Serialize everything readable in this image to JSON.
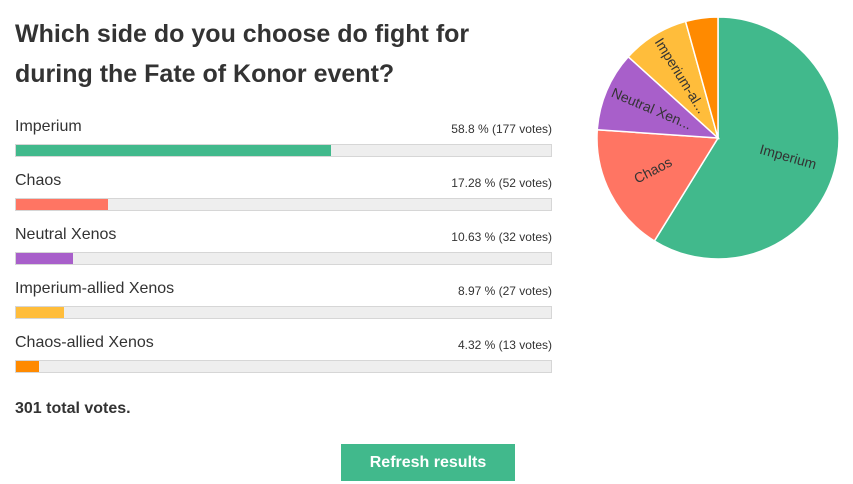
{
  "poll": {
    "question": "Which side do you choose do fight for during the Fate of Konor event?",
    "total_votes_text": "301 total votes.",
    "refresh_label": "Refresh results",
    "options": [
      {
        "label": "Imperium",
        "stat": "58.8 % (177 votes)",
        "percent": 58.8,
        "votes": 177,
        "color": "#41b98c"
      },
      {
        "label": "Chaos",
        "stat": "17.28 % (52 votes)",
        "percent": 17.28,
        "votes": 52,
        "color": "#ff7563"
      },
      {
        "label": "Neutral Xenos",
        "stat": "10.63 % (32 votes)",
        "percent": 10.63,
        "votes": 32,
        "color": "#a85fca"
      },
      {
        "label": "Imperium-allied Xenos",
        "stat": "8.97 % (27 votes)",
        "percent": 8.97,
        "votes": 27,
        "color": "#ffbd3b"
      },
      {
        "label": "Chaos-allied Xenos",
        "stat": "4.32 % (13 votes)",
        "percent": 4.32,
        "votes": 13,
        "color": "#ff8a00"
      }
    ]
  },
  "chart_data": {
    "type": "pie",
    "categories": [
      "Imperium",
      "Chaos",
      "Neutral Xenos",
      "Imperium-allied Xenos",
      "Chaos-allied Xenos"
    ],
    "slice_labels": [
      "Imperium",
      "Chaos",
      "Neutral Xen...",
      "Imperium-al...",
      ""
    ],
    "values": [
      177,
      52,
      32,
      27,
      13
    ],
    "percentages": [
      58.8,
      17.28,
      10.63,
      8.97,
      4.32
    ],
    "colors": [
      "#41b98c",
      "#ff7563",
      "#a85fca",
      "#ffbd3b",
      "#ff8a00"
    ]
  }
}
